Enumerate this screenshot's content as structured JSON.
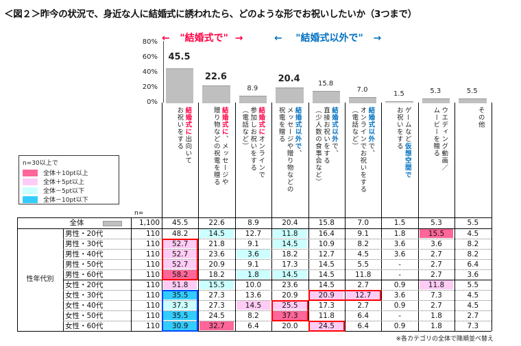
{
  "title": "＜図２＞昨今の状況で、身近な人に結婚式に誘われたら、どのような形でお祝いしたいか（3つまで）",
  "arrows": {
    "wedding": "\"結婚式で\"",
    "other": "\"結婚式以外で\""
  },
  "colors": {
    "red": "#ff0044",
    "blue": "#0070c0",
    "bar": "#bfbfbf",
    "plus10": "#ff6699",
    "plus5": "#ffccf5",
    "minus5": "#ccffff",
    "minus10": "#33ccff",
    "box_red": "#ff0000",
    "box_blue": "#0044ff"
  },
  "legend": {
    "title": "n=30以上で",
    "items": [
      {
        "label": "全体＋10pt以上",
        "key": "plus10"
      },
      {
        "label": "全体＋5pt以上",
        "key": "plus5"
      },
      {
        "label": "全体－5pt以下",
        "key": "minus5"
      },
      {
        "label": "全体－10pt以下",
        "key": "minus10"
      }
    ]
  },
  "n_label": "n=",
  "group_label": "性年代別",
  "total_label": "全体",
  "note": "※各カテゴリの全体で降順並べ替え",
  "chart_data": {
    "type": "bar",
    "ylim": [
      0,
      80
    ],
    "yticks": [
      "0%",
      "20%",
      "40%",
      "60%",
      "80%"
    ],
    "categories": [
      [
        [
          [
            "結婚式に",
            "red"
          ],
          [
            "出向いて",
            ""
          ]
        ],
        [
          [
            "お祝いをする",
            ""
          ]
        ]
      ],
      [
        [
          [
            "結婚式に",
            "red"
          ],
          [
            "、メッセージや",
            ""
          ]
        ],
        [
          [
            "贈り物などの祝電を贈る",
            ""
          ]
        ]
      ],
      [
        [
          [
            "結婚式に",
            "red"
          ],
          [
            "オンラインで",
            ""
          ]
        ],
        [
          [
            "参加しお祝いをする",
            ""
          ]
        ],
        [
          [
            "（電話など）",
            ""
          ]
        ]
      ],
      [
        [
          [
            "結婚式以外で",
            "blue"
          ],
          [
            "、",
            ""
          ]
        ],
        [
          [
            "メッセージや贈り物などの",
            ""
          ]
        ],
        [
          [
            "祝電を贈る",
            ""
          ]
        ]
      ],
      [
        [
          [
            "結婚式以外",
            "blue"
          ],
          [
            "で、",
            ""
          ]
        ],
        [
          [
            "直接お祝いをする",
            ""
          ]
        ],
        [
          [
            "（少人数の食事会など）",
            ""
          ]
        ]
      ],
      [
        [
          [
            "結婚式以外",
            "blue"
          ],
          [
            "で、",
            ""
          ]
        ],
        [
          [
            "オンラインでお祝いをする",
            ""
          ]
        ],
        [
          [
            "（電話など）",
            ""
          ]
        ]
      ],
      [
        [
          [
            "ゲームなど",
            ""
          ],
          [
            "仮想空間で",
            "blue"
          ]
        ],
        [
          [
            "お祝いをする",
            ""
          ]
        ]
      ],
      [
        [
          [
            "ウエディング動画／",
            ""
          ]
        ],
        [
          [
            "ムービーを贈る",
            ""
          ]
        ]
      ],
      [
        [
          [
            "その他",
            ""
          ]
        ]
      ]
    ],
    "values": [
      45.5,
      22.6,
      8.9,
      20.4,
      15.8,
      7.0,
      1.5,
      5.3,
      5.5
    ],
    "total_n": "1,100",
    "total_row": [
      "45.5",
      "22.6",
      "8.9",
      "20.4",
      "15.8",
      "7.0",
      "1.5",
      "5.3",
      "5.5"
    ],
    "rows": [
      {
        "label": "男性・20代",
        "n": "110",
        "values": [
          "48.2",
          "14.5",
          "12.7",
          "11.8",
          "16.4",
          "9.1",
          "1.8",
          "15.5",
          "4.5"
        ],
        "hl": [
          "",
          "minus5",
          "",
          "minus5",
          "",
          "",
          "",
          "plus10",
          ""
        ]
      },
      {
        "label": "男性・30代",
        "n": "110",
        "values": [
          "52.7",
          "21.8",
          "9.1",
          "14.5",
          "10.9",
          "8.2",
          "3.6",
          "3.6",
          "8.2"
        ],
        "hl": [
          "plus5",
          "",
          "",
          "minus5",
          "",
          "",
          "",
          "",
          ""
        ]
      },
      {
        "label": "男性・40代",
        "n": "110",
        "values": [
          "52.7",
          "23.6",
          "3.6",
          "18.2",
          "12.7",
          "4.5",
          "3.6",
          "2.7",
          "8.2"
        ],
        "hl": [
          "plus5",
          "",
          "minus5",
          "",
          "",
          "",
          "",
          "",
          ""
        ]
      },
      {
        "label": "男性・50代",
        "n": "110",
        "values": [
          "52.7",
          "20.9",
          "9.1",
          "17.3",
          "14.5",
          "5.5",
          "-",
          "2.7",
          "6.4"
        ],
        "hl": [
          "plus5",
          "",
          "",
          "",
          "",
          "",
          "",
          "",
          ""
        ]
      },
      {
        "label": "男性・60代",
        "n": "110",
        "values": [
          "58.2",
          "18.2",
          "1.8",
          "14.5",
          "14.5",
          "11.8",
          "-",
          "2.7",
          "3.6"
        ],
        "hl": [
          "plus10",
          "",
          "minus5",
          "minus5",
          "",
          "",
          "",
          "",
          ""
        ]
      },
      {
        "label": "女性・20代",
        "n": "110",
        "values": [
          "51.8",
          "15.5",
          "10.0",
          "23.6",
          "14.5",
          "2.7",
          "0.9",
          "11.8",
          "5.5"
        ],
        "hl": [
          "plus5",
          "minus5",
          "",
          "",
          "",
          "",
          "",
          "plus5",
          ""
        ]
      },
      {
        "label": "女性・30代",
        "n": "110",
        "values": [
          "35.5",
          "27.3",
          "13.6",
          "20.9",
          "20.9",
          "12.7",
          "3.6",
          "7.3",
          "4.5"
        ],
        "hl": [
          "minus10",
          "",
          "",
          "",
          "plus5",
          "plus5",
          "",
          "",
          ""
        ]
      },
      {
        "label": "女性・40代",
        "n": "110",
        "values": [
          "37.3",
          "27.3",
          "14.5",
          "25.5",
          "17.3",
          "2.7",
          "0.9",
          "2.7",
          "4.5"
        ],
        "hl": [
          "minus5",
          "",
          "plus5",
          "plus5",
          "",
          "",
          "",
          "",
          ""
        ]
      },
      {
        "label": "女性・50代",
        "n": "110",
        "values": [
          "35.5",
          "24.5",
          "8.2",
          "37.3",
          "11.8",
          "6.4",
          "-",
          "1.8",
          "2.7"
        ],
        "hl": [
          "minus10",
          "",
          "",
          "plus10",
          "",
          "",
          "",
          "",
          ""
        ]
      },
      {
        "label": "女性・60代",
        "n": "110",
        "values": [
          "30.9",
          "32.7",
          "6.4",
          "20.0",
          "24.5",
          "6.4",
          "0.9",
          "1.8",
          "7.3"
        ],
        "hl": [
          "minus10",
          "plus10",
          "",
          "",
          "plus5",
          "",
          "",
          "",
          ""
        ]
      }
    ],
    "boxes": [
      {
        "col_from": 0,
        "col_to": 0,
        "row_from": 1,
        "row_to": 4,
        "color": "red"
      },
      {
        "col_from": 0,
        "col_to": 0,
        "row_from": 6,
        "row_to": 9,
        "color": "blue"
      },
      {
        "col_from": 3,
        "col_to": 3,
        "row_from": 7,
        "row_to": 8,
        "color": "red"
      },
      {
        "col_from": 4,
        "col_to": 5,
        "row_from": 6,
        "row_to": 6,
        "color": "red"
      },
      {
        "col_from": 4,
        "col_to": 4,
        "row_from": 9,
        "row_to": 9,
        "color": "red"
      }
    ]
  }
}
